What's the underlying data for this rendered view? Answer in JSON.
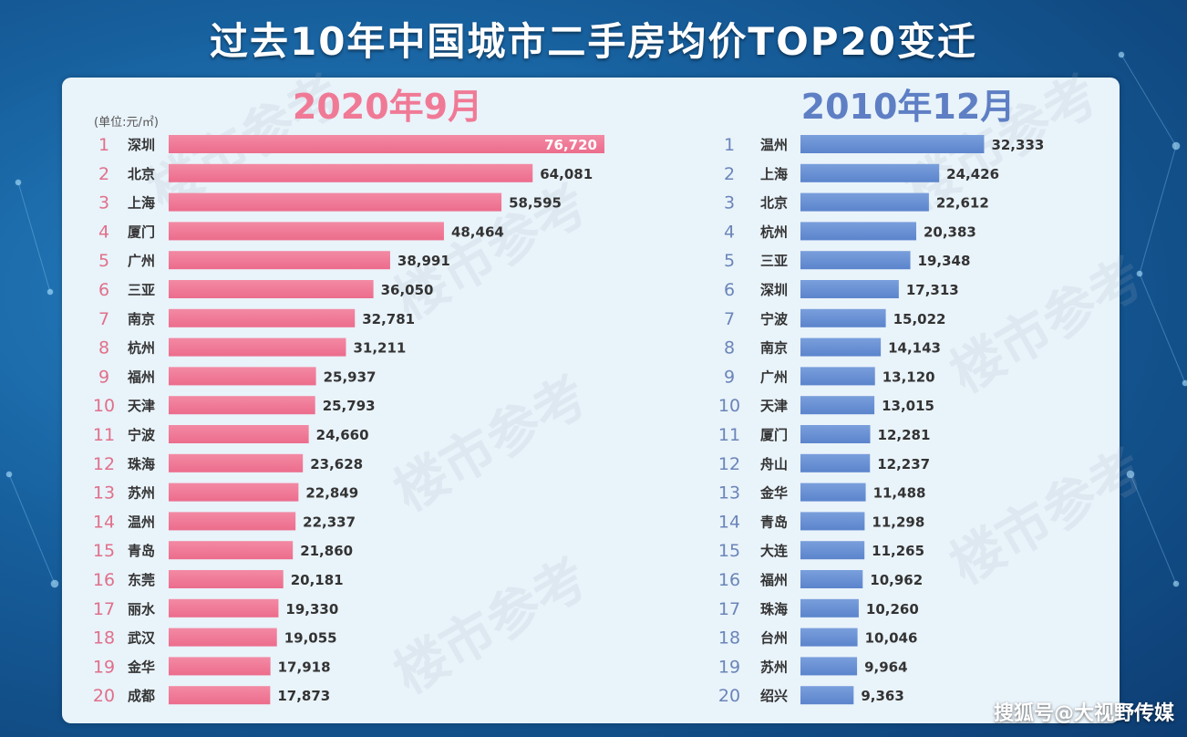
{
  "page": {
    "title": "过去10年中国城市二手房均价TOP20变迁",
    "unit": "(单位:元/㎡)",
    "watermark": "楼市参考",
    "source": "搜狐号@大视野传媒"
  },
  "colors": {
    "left_bar": "#ec6c8c",
    "left_title": "#f07a96",
    "right_bar": "#5b84cc",
    "right_title": "#5e7fc4"
  },
  "chart_data": [
    {
      "type": "bar",
      "orientation": "horizontal",
      "title": "2020年9月",
      "ylabel": "(单位:元/㎡)",
      "ranks": [
        "1",
        "2",
        "3",
        "4",
        "5",
        "6",
        "7",
        "8",
        "9",
        "10",
        "11",
        "12",
        "13",
        "14",
        "15",
        "16",
        "17",
        "18",
        "19",
        "20"
      ],
      "categories": [
        "深圳",
        "北京",
        "上海",
        "厦门",
        "广州",
        "三亚",
        "南京",
        "杭州",
        "福州",
        "天津",
        "宁波",
        "珠海",
        "苏州",
        "温州",
        "青岛",
        "东莞",
        "丽水",
        "武汉",
        "金华",
        "成都"
      ],
      "values": [
        76720,
        64081,
        58595,
        48464,
        38991,
        36050,
        32781,
        31211,
        25937,
        25793,
        24660,
        23628,
        22849,
        22337,
        21860,
        20181,
        19330,
        19055,
        17918,
        17873
      ],
      "value_labels": [
        "76,720",
        "64,081",
        "58,595",
        "48,464",
        "38,991",
        "36,050",
        "32,781",
        "31,211",
        "25,937",
        "25,793",
        "24,660",
        "23,628",
        "22,849",
        "22,337",
        "21,860",
        "20,181",
        "19,330",
        "19,055",
        "17,918",
        "17,873"
      ],
      "xlim": [
        0,
        80000
      ]
    },
    {
      "type": "bar",
      "orientation": "horizontal",
      "title": "2010年12月",
      "ranks": [
        "1",
        "2",
        "3",
        "4",
        "5",
        "6",
        "7",
        "8",
        "9",
        "10",
        "11",
        "12",
        "13",
        "14",
        "15",
        "16",
        "17",
        "18",
        "19",
        "20"
      ],
      "categories": [
        "温州",
        "上海",
        "北京",
        "杭州",
        "三亚",
        "深圳",
        "宁波",
        "南京",
        "广州",
        "天津",
        "厦门",
        "舟山",
        "金华",
        "青岛",
        "大连",
        "福州",
        "珠海",
        "台州",
        "苏州",
        "绍兴"
      ],
      "values": [
        32333,
        24426,
        22612,
        20383,
        19348,
        17313,
        15022,
        14143,
        13120,
        13015,
        12281,
        12237,
        11488,
        11298,
        11265,
        10962,
        10260,
        10046,
        9964,
        9363
      ],
      "value_labels": [
        "32,333",
        "24,426",
        "22,612",
        "20,383",
        "19,348",
        "17,313",
        "15,022",
        "14,143",
        "13,120",
        "13,015",
        "12,281",
        "12,237",
        "11,488",
        "11,298",
        "11,265",
        "10,962",
        "10,260",
        "10,046",
        "9,964",
        "9,363"
      ],
      "xlim": [
        0,
        80000
      ]
    }
  ]
}
